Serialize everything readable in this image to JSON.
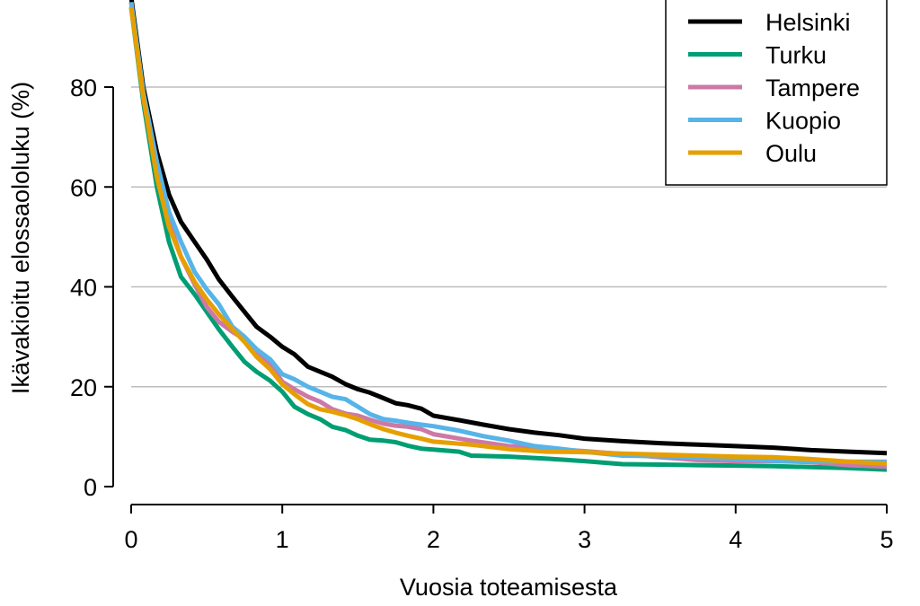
{
  "chart_data": {
    "type": "line",
    "xlabel": "Vuosia toteamisesta",
    "ylabel": "Ikävakioitu elossaololuku (%)",
    "xlim": [
      0,
      5
    ],
    "ylim": [
      0,
      100
    ],
    "x_ticks": [
      0,
      1,
      2,
      3,
      4,
      5
    ],
    "y_ticks": [
      0,
      20,
      40,
      60,
      80
    ],
    "grid": "horizontal",
    "legend_position": "top-right",
    "series": [
      {
        "name": "Helsinki",
        "color": "#000000",
        "x": [
          0,
          0.08,
          0.17,
          0.25,
          0.33,
          0.42,
          0.5,
          0.58,
          0.67,
          0.75,
          0.83,
          0.92,
          1.0,
          1.08,
          1.17,
          1.25,
          1.33,
          1.42,
          1.5,
          1.58,
          1.67,
          1.75,
          1.83,
          1.92,
          2.0,
          2.17,
          2.33,
          2.5,
          2.67,
          2.83,
          3.0,
          3.25,
          3.5,
          3.75,
          4.0,
          4.25,
          4.5,
          4.75,
          5.0
        ],
        "y": [
          98,
          80,
          67,
          58.5,
          53,
          49,
          45.5,
          41.5,
          38,
          35,
          32,
          30,
          28,
          26.5,
          24,
          23,
          22,
          20.5,
          19.5,
          18.8,
          17.7,
          16.7,
          16.3,
          15.6,
          14.2,
          13.3,
          12.4,
          11.5,
          10.8,
          10.3,
          9.6,
          9.1,
          8.7,
          8.4,
          8.1,
          7.8,
          7.3,
          7.0,
          6.7
        ]
      },
      {
        "name": "Turku",
        "color": "#009E73",
        "x": [
          0,
          0.08,
          0.17,
          0.25,
          0.33,
          0.42,
          0.5,
          0.58,
          0.67,
          0.75,
          0.83,
          0.92,
          1.0,
          1.08,
          1.17,
          1.25,
          1.33,
          1.42,
          1.5,
          1.58,
          1.67,
          1.75,
          1.83,
          1.92,
          2.0,
          2.17,
          2.25,
          2.5,
          2.75,
          3.0,
          3.25,
          3.5,
          3.75,
          4.0,
          4.25,
          4.5,
          4.75,
          5.0
        ],
        "y": [
          96,
          77,
          60,
          49,
          42,
          38.5,
          35,
          31.5,
          28,
          25,
          23,
          21.2,
          19,
          16,
          14.5,
          13.5,
          12,
          11.3,
          10.2,
          9.4,
          9.2,
          8.9,
          8.2,
          7.6,
          7.4,
          7.0,
          6.2,
          6.0,
          5.6,
          5.1,
          4.5,
          4.4,
          4.3,
          4.2,
          4.1,
          3.9,
          3.7,
          3.4
        ]
      },
      {
        "name": "Tampere",
        "color": "#CC79A7",
        "x": [
          0,
          0.08,
          0.17,
          0.25,
          0.33,
          0.42,
          0.5,
          0.58,
          0.67,
          0.75,
          0.83,
          0.92,
          1.0,
          1.08,
          1.17,
          1.25,
          1.33,
          1.42,
          1.5,
          1.58,
          1.67,
          1.75,
          1.83,
          1.92,
          2.0,
          2.25,
          2.5,
          2.75,
          3.0,
          3.25,
          3.5,
          3.75,
          4.0,
          4.25,
          4.5,
          4.75,
          5.0
        ],
        "y": [
          97,
          78,
          63,
          53,
          46,
          40.5,
          36,
          33,
          31,
          29.5,
          27,
          24.5,
          21,
          19.5,
          18,
          17,
          15.5,
          14.6,
          14.2,
          13.4,
          12.6,
          12.2,
          12.0,
          11.5,
          10.5,
          9.2,
          8.1,
          7.6,
          7.1,
          6.5,
          5.9,
          5.3,
          5.1,
          5.1,
          4.9,
          4.3,
          4.0
        ]
      },
      {
        "name": "Kuopio",
        "color": "#56B4E9",
        "x": [
          0,
          0.08,
          0.17,
          0.25,
          0.33,
          0.42,
          0.5,
          0.58,
          0.67,
          0.75,
          0.83,
          0.92,
          1.0,
          1.08,
          1.17,
          1.25,
          1.33,
          1.42,
          1.5,
          1.58,
          1.67,
          1.75,
          1.83,
          1.92,
          2.0,
          2.17,
          2.33,
          2.5,
          2.67,
          2.83,
          3.0,
          3.25,
          3.5,
          3.75,
          4.0,
          4.25,
          4.5,
          4.75,
          5.0
        ],
        "y": [
          97,
          79,
          65,
          55,
          49,
          43,
          39.5,
          36.5,
          32,
          30,
          27.5,
          25.5,
          22.5,
          21.5,
          20,
          19,
          18,
          17.5,
          16,
          14.5,
          13.5,
          13.2,
          12.8,
          12.4,
          12.1,
          11.2,
          10.1,
          9.2,
          8.1,
          7.6,
          7.0,
          6.2,
          6.1,
          5.8,
          5.5,
          5.2,
          5.0,
          5.0,
          5.0
        ]
      },
      {
        "name": "Oulu",
        "color": "#E69F00",
        "x": [
          0,
          0.08,
          0.17,
          0.25,
          0.33,
          0.42,
          0.5,
          0.58,
          0.67,
          0.75,
          0.83,
          0.92,
          1.0,
          1.08,
          1.17,
          1.25,
          1.33,
          1.42,
          1.5,
          1.58,
          1.67,
          1.75,
          1.83,
          1.92,
          2.0,
          2.25,
          2.5,
          2.75,
          3.0,
          3.25,
          3.5,
          3.75,
          4.0,
          4.25,
          4.5,
          4.75,
          5.0
        ],
        "y": [
          96,
          78,
          62,
          52,
          46,
          41,
          37.5,
          34.5,
          31.5,
          29,
          26,
          23.5,
          20.5,
          18.5,
          16.5,
          15.5,
          15,
          14.3,
          13.5,
          12.5,
          11.5,
          10.8,
          10.2,
          9.6,
          9.0,
          8.4,
          7.5,
          7.0,
          6.9,
          6.6,
          6.4,
          6.2,
          6.0,
          5.9,
          5.5,
          5.0,
          4.6
        ]
      }
    ]
  }
}
